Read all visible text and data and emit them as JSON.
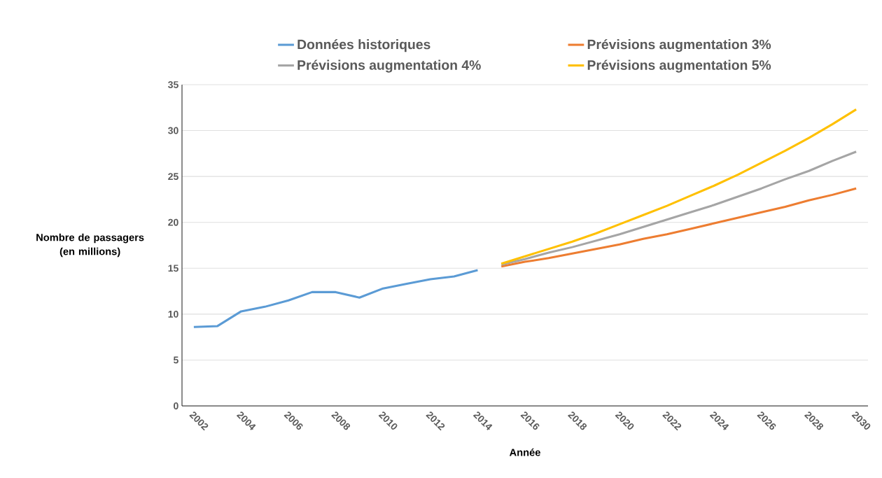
{
  "chart_data": {
    "type": "line",
    "xlabel": "Année",
    "ylabel": "Nombre de passagers (en millions)",
    "xlim": [
      2001.5,
      2030.5
    ],
    "xticks": [
      2002,
      2004,
      2006,
      2008,
      2010,
      2012,
      2014,
      2016,
      2018,
      2020,
      2022,
      2024,
      2026,
      2028,
      2030
    ],
    "ylim": [
      0,
      35
    ],
    "yticks": [
      0,
      5,
      10,
      15,
      20,
      25,
      30,
      35
    ],
    "grid": "y",
    "legend": "top",
    "series": [
      {
        "name": "Données historiques",
        "color": "#5b9bd5",
        "x": [
          2002,
          2003,
          2004,
          2005,
          2006,
          2007,
          2008,
          2009,
          2010,
          2011,
          2012,
          2013,
          2014
        ],
        "values": [
          8.6,
          8.7,
          10.3,
          10.8,
          11.5,
          12.4,
          12.4,
          11.8,
          12.8,
          13.3,
          13.8,
          14.1,
          14.8
        ]
      },
      {
        "name": "Prévisions augmentation 3%",
        "color": "#ed7d31",
        "x": [
          2015,
          2016,
          2017,
          2018,
          2019,
          2020,
          2021,
          2022,
          2023,
          2024,
          2025,
          2026,
          2027,
          2028,
          2029,
          2030
        ],
        "values": [
          15.2,
          15.7,
          16.1,
          16.6,
          17.1,
          17.6,
          18.2,
          18.7,
          19.3,
          19.9,
          20.5,
          21.1,
          21.7,
          22.4,
          23.0,
          23.7
        ]
      },
      {
        "name": "Prévisions augmentation 4%",
        "color": "#a5a5a5",
        "x": [
          2015,
          2016,
          2017,
          2018,
          2019,
          2020,
          2021,
          2022,
          2023,
          2024,
          2025,
          2026,
          2027,
          2028,
          2029,
          2030
        ],
        "values": [
          15.4,
          16.0,
          16.7,
          17.3,
          18.0,
          18.7,
          19.5,
          20.3,
          21.1,
          21.9,
          22.8,
          23.7,
          24.7,
          25.6,
          26.7,
          27.7
        ]
      },
      {
        "name": "Prévisions augmentation 5%",
        "color": "#ffc000",
        "x": [
          2015,
          2016,
          2017,
          2018,
          2019,
          2020,
          2021,
          2022,
          2023,
          2024,
          2025,
          2026,
          2027,
          2028,
          2029,
          2030
        ],
        "values": [
          15.5,
          16.3,
          17.1,
          17.9,
          18.8,
          19.8,
          20.8,
          21.8,
          22.9,
          24.0,
          25.2,
          26.5,
          27.8,
          29.2,
          30.7,
          32.3
        ]
      }
    ]
  }
}
